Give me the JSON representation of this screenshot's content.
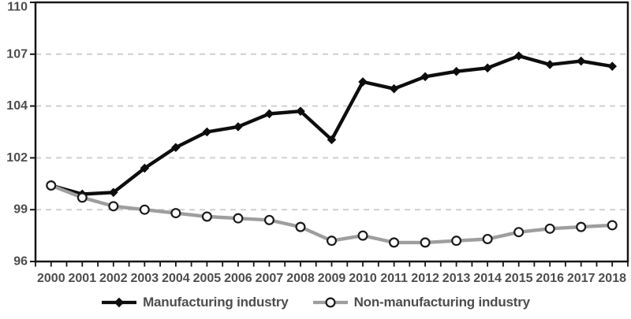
{
  "chart_data": {
    "type": "line",
    "title": "",
    "categories": [
      "2000",
      "2001",
      "2002",
      "2003",
      "2004",
      "2005",
      "2006",
      "2007",
      "2008",
      "2009",
      "2010",
      "2011",
      "2012",
      "2013",
      "2014",
      "2015",
      "2016",
      "2017",
      "2018"
    ],
    "series": [
      {
        "name": "Manufacturing industry",
        "marker": "diamond",
        "color": "#0d0d0d",
        "values": [
          100.4,
          99.9,
          100.0,
          101.4,
          102.4,
          103.0,
          103.2,
          103.7,
          103.8,
          102.7,
          105.4,
          105.0,
          105.7,
          106.0,
          106.2,
          106.9,
          106.4,
          106.6,
          106.3
        ]
      },
      {
        "name": "Non-manufacturing industry",
        "marker": "open-circle",
        "color": "#9e9e9e",
        "marker_fill": "#ffffff",
        "marker_stroke": "#1a1a1a",
        "values": [
          100.4,
          99.7,
          99.2,
          99.0,
          98.8,
          98.6,
          98.5,
          98.4,
          98.0,
          97.2,
          97.5,
          97.1,
          97.1,
          97.2,
          97.3,
          97.7,
          97.9,
          98.0,
          98.1
        ]
      }
    ],
    "y_axis": {
      "tick_labels": [
        96,
        99,
        102,
        104,
        107,
        110
      ]
    },
    "grid": {
      "horizontal_dashed_at": [
        99,
        102,
        104,
        107
      ],
      "color": "#cfcfcf"
    },
    "legend_position": "bottom"
  },
  "colors": {
    "text": "#4d4d4d",
    "axis": "#161616",
    "background": "#ffffff"
  }
}
